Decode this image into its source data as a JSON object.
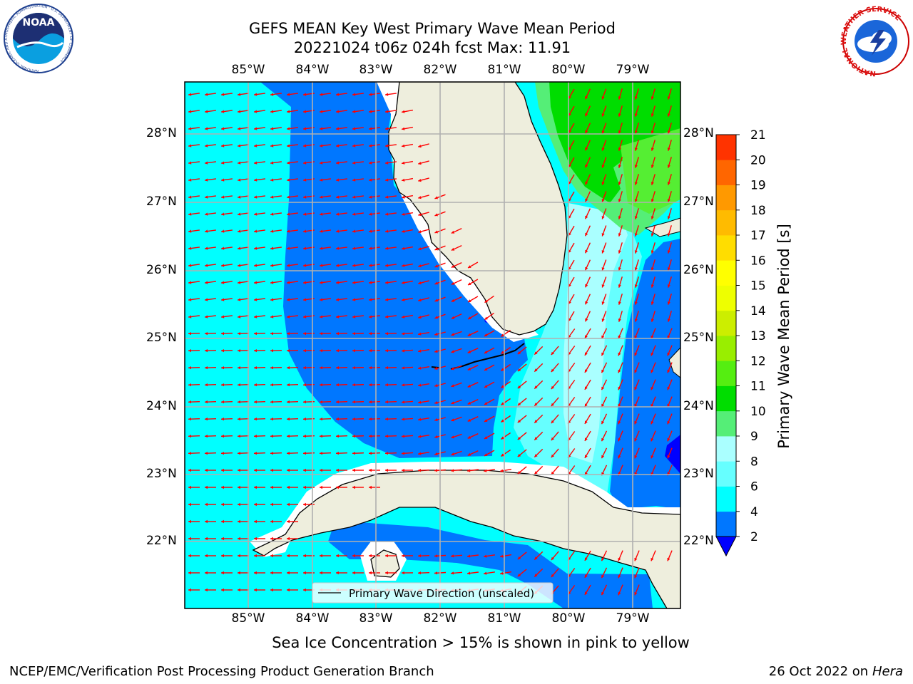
{
  "header": {
    "title_line1": "GEFS MEAN Key West Primary Wave Mean Period",
    "title_line2": "20221024 t06z 024h fcst   Max: 11.91"
  },
  "logos": {
    "noaa_text": "NOAA",
    "noaa_ring_text": "NATIONAL OCEANIC AND ATMOSPHERIC ADMINISTRATION · U.S. DEPARTMENT OF COMMERCE",
    "nws_ring_text": "NATIONAL WEATHER SERVICE"
  },
  "map": {
    "lon_labels": [
      "85°W",
      "84°W",
      "83°W",
      "82°W",
      "81°W",
      "80°W",
      "79°W"
    ],
    "lat_labels": [
      "28°N",
      "27°N",
      "26°N",
      "25°N",
      "24°N",
      "23°N",
      "22°N"
    ],
    "legend_label": "Primary Wave Direction (unscaled)",
    "colors": {
      "land": "#eeeedd",
      "arrow": "#ff0000",
      "grid": "#b0b0b0"
    },
    "period_bands_s": {
      "2-4": "#0077ff",
      "4-6": "#00ffff",
      "6-8": "#66ffff",
      "8-9": "#aaffff",
      "9-10": "#55ee77",
      "10-11": "#00dd00",
      "11-12": "#55ee33"
    }
  },
  "colorbar": {
    "label": "Primary Wave Mean Period [s]",
    "ticks": [
      "2",
      "4",
      "6",
      "8",
      "9",
      "10",
      "11",
      "12",
      "13",
      "14",
      "15",
      "16",
      "17",
      "18",
      "19",
      "20",
      "21"
    ],
    "colors": [
      "#0077ff",
      "#00ffff",
      "#66ffff",
      "#aaffff",
      "#55ee77",
      "#00dd00",
      "#55ee11",
      "#99ee00",
      "#ccee00",
      "#eeff00",
      "#ffff00",
      "#ffdd00",
      "#ffbb00",
      "#ff9900",
      "#ff6600",
      "#ff3300"
    ],
    "extend_below_color": "#0000ff"
  },
  "notes": {
    "sea_ice": "Sea Ice Concentration > 15% is shown in pink to yellow",
    "producer": "NCEP/EMC/Verification Post Processing Product Generation Branch",
    "date": "26 Oct 2022 on ",
    "machine": "Hera"
  }
}
